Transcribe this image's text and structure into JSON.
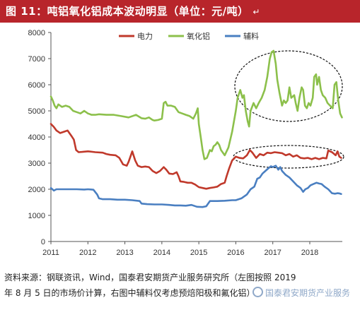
{
  "header": {
    "title": "图 11：吨铝氧化铝成本波动明显（单位：元/吨）",
    "mark": "↵"
  },
  "footnote": {
    "line1": "资料来源：钢联资讯，Wind，国泰君安期货产业服务研究所（左图按照 2019",
    "line2": "年 8 月 5 日的市场价计算，右图中辅料仅考虑预焙阳极和氟化铝）",
    "watermark": "国泰君安期货产业服务"
  },
  "chart_data": {
    "type": "line",
    "title": "",
    "xlabel": "",
    "ylabel": "",
    "xlim": [
      2011.0,
      2018.88
    ],
    "ylim": [
      0,
      8000
    ],
    "yticks": [
      "0",
      "1000",
      "2000",
      "3000",
      "4000",
      "5000",
      "6000",
      "7000",
      "8000"
    ],
    "xticks": [
      "2011",
      "2012",
      "2013",
      "2014",
      "2015",
      "2016",
      "2017",
      "2018"
    ],
    "grid": false,
    "legend": "top-center",
    "series": [
      {
        "name": "电力",
        "color": "#c0392b",
        "points": [
          [
            2011.0,
            4500
          ],
          [
            2011.08,
            4380
          ],
          [
            2011.15,
            4250
          ],
          [
            2011.25,
            4150
          ],
          [
            2011.35,
            4200
          ],
          [
            2011.45,
            4250
          ],
          [
            2011.55,
            4050
          ],
          [
            2011.62,
            3900
          ],
          [
            2011.68,
            3500
          ],
          [
            2011.75,
            3420
          ],
          [
            2011.85,
            3430
          ],
          [
            2012.0,
            3450
          ],
          [
            2012.2,
            3420
          ],
          [
            2012.4,
            3400
          ],
          [
            2012.5,
            3350
          ],
          [
            2012.6,
            3320
          ],
          [
            2012.75,
            3300
          ],
          [
            2012.85,
            3200
          ],
          [
            2012.95,
            2950
          ],
          [
            2013.05,
            2900
          ],
          [
            2013.1,
            3050
          ],
          [
            2013.15,
            3250
          ],
          [
            2013.2,
            3450
          ],
          [
            2013.28,
            3100
          ],
          [
            2013.35,
            2900
          ],
          [
            2013.45,
            2850
          ],
          [
            2013.55,
            2870
          ],
          [
            2013.65,
            2850
          ],
          [
            2013.75,
            2700
          ],
          [
            2013.85,
            2620
          ],
          [
            2013.95,
            2700
          ],
          [
            2014.05,
            2850
          ],
          [
            2014.12,
            2750
          ],
          [
            2014.2,
            2600
          ],
          [
            2014.3,
            2580
          ],
          [
            2014.4,
            2650
          ],
          [
            2014.45,
            2500
          ],
          [
            2014.5,
            2300
          ],
          [
            2014.6,
            2280
          ],
          [
            2014.7,
            2250
          ],
          [
            2014.8,
            2250
          ],
          [
            2014.9,
            2180
          ],
          [
            2015.0,
            2080
          ],
          [
            2015.1,
            2050
          ],
          [
            2015.2,
            2020
          ],
          [
            2015.3,
            2050
          ],
          [
            2015.4,
            2070
          ],
          [
            2015.5,
            2100
          ],
          [
            2015.6,
            2200
          ],
          [
            2015.7,
            2250
          ],
          [
            2015.75,
            2500
          ],
          [
            2015.82,
            2800
          ],
          [
            2015.9,
            3100
          ],
          [
            2016.0,
            3250
          ],
          [
            2016.1,
            3200
          ],
          [
            2016.2,
            3180
          ],
          [
            2016.3,
            3300
          ],
          [
            2016.38,
            3500
          ],
          [
            2016.45,
            3400
          ],
          [
            2016.55,
            3200
          ],
          [
            2016.65,
            3350
          ],
          [
            2016.75,
            3300
          ],
          [
            2016.85,
            3400
          ],
          [
            2016.95,
            3380
          ],
          [
            2017.05,
            3420
          ],
          [
            2017.15,
            3400
          ],
          [
            2017.25,
            3380
          ],
          [
            2017.35,
            3300
          ],
          [
            2017.45,
            3350
          ],
          [
            2017.55,
            3250
          ],
          [
            2017.65,
            3300
          ],
          [
            2017.75,
            3200
          ],
          [
            2017.85,
            3180
          ],
          [
            2017.95,
            3200
          ],
          [
            2018.05,
            3150
          ],
          [
            2018.15,
            3200
          ],
          [
            2018.25,
            3150
          ],
          [
            2018.35,
            3200
          ],
          [
            2018.45,
            3180
          ],
          [
            2018.5,
            3480
          ],
          [
            2018.6,
            3420
          ],
          [
            2018.7,
            3300
          ],
          [
            2018.75,
            3450
          ],
          [
            2018.8,
            3250
          ],
          [
            2018.85,
            3200
          ]
        ]
      },
      {
        "name": "氧化铝",
        "color": "#8cc04b",
        "points": [
          [
            2011.0,
            5550
          ],
          [
            2011.05,
            5400
          ],
          [
            2011.1,
            5200
          ],
          [
            2011.15,
            5100
          ],
          [
            2011.2,
            5250
          ],
          [
            2011.3,
            5150
          ],
          [
            2011.4,
            5200
          ],
          [
            2011.5,
            5150
          ],
          [
            2011.6,
            5000
          ],
          [
            2011.7,
            4950
          ],
          [
            2011.8,
            4900
          ],
          [
            2011.9,
            5000
          ],
          [
            2012.0,
            4900
          ],
          [
            2012.1,
            4850
          ],
          [
            2012.2,
            4850
          ],
          [
            2012.3,
            4870
          ],
          [
            2012.5,
            4850
          ],
          [
            2012.7,
            4850
          ],
          [
            2012.9,
            4800
          ],
          [
            2013.1,
            4750
          ],
          [
            2013.3,
            4850
          ],
          [
            2013.45,
            4720
          ],
          [
            2013.55,
            4700
          ],
          [
            2013.65,
            4750
          ],
          [
            2013.75,
            4650
          ],
          [
            2013.8,
            4630
          ],
          [
            2013.9,
            4650
          ],
          [
            2014.0,
            4700
          ],
          [
            2014.05,
            5300
          ],
          [
            2014.1,
            5350
          ],
          [
            2014.15,
            5200
          ],
          [
            2014.25,
            5200
          ],
          [
            2014.35,
            5150
          ],
          [
            2014.45,
            4950
          ],
          [
            2014.55,
            4900
          ],
          [
            2014.65,
            4850
          ],
          [
            2014.75,
            4800
          ],
          [
            2014.85,
            4700
          ],
          [
            2014.92,
            4900
          ],
          [
            2014.97,
            5100
          ],
          [
            2015.0,
            4500
          ],
          [
            2015.05,
            4000
          ],
          [
            2015.1,
            3500
          ],
          [
            2015.15,
            3150
          ],
          [
            2015.22,
            3200
          ],
          [
            2015.3,
            3500
          ],
          [
            2015.35,
            3450
          ],
          [
            2015.4,
            3650
          ],
          [
            2015.45,
            3700
          ],
          [
            2015.5,
            3800
          ],
          [
            2015.55,
            3700
          ],
          [
            2015.6,
            3500
          ],
          [
            2015.7,
            3300
          ],
          [
            2015.8,
            3600
          ],
          [
            2015.9,
            4200
          ],
          [
            2016.0,
            5000
          ],
          [
            2016.05,
            5500
          ],
          [
            2016.12,
            5800
          ],
          [
            2016.18,
            5500
          ],
          [
            2016.22,
            5600
          ],
          [
            2016.27,
            5000
          ],
          [
            2016.32,
            4600
          ],
          [
            2016.36,
            4400
          ],
          [
            2016.4,
            5000
          ],
          [
            2016.48,
            5300
          ],
          [
            2016.55,
            5100
          ],
          [
            2016.62,
            5300
          ],
          [
            2016.7,
            5500
          ],
          [
            2016.78,
            5800
          ],
          [
            2016.85,
            6300
          ],
          [
            2016.92,
            7000
          ],
          [
            2016.97,
            7250
          ],
          [
            2017.02,
            7300
          ],
          [
            2017.08,
            6800
          ],
          [
            2017.12,
            6200
          ],
          [
            2017.18,
            5700
          ],
          [
            2017.25,
            5200
          ],
          [
            2017.3,
            5400
          ],
          [
            2017.35,
            5300
          ],
          [
            2017.4,
            5400
          ],
          [
            2017.45,
            5900
          ],
          [
            2017.5,
            5500
          ],
          [
            2017.58,
            5600
          ],
          [
            2017.62,
            5300
          ],
          [
            2017.67,
            5000
          ],
          [
            2017.72,
            5500
          ],
          [
            2017.78,
            5900
          ],
          [
            2017.82,
            5800
          ],
          [
            2017.87,
            5200
          ],
          [
            2017.92,
            5100
          ],
          [
            2017.97,
            5300
          ],
          [
            2018.02,
            5200
          ],
          [
            2018.08,
            5500
          ],
          [
            2018.12,
            6300
          ],
          [
            2018.17,
            6400
          ],
          [
            2018.2,
            6000
          ],
          [
            2018.25,
            6300
          ],
          [
            2018.3,
            5800
          ],
          [
            2018.35,
            5600
          ],
          [
            2018.42,
            5500
          ],
          [
            2018.48,
            5300
          ],
          [
            2018.55,
            5200
          ],
          [
            2018.62,
            5100
          ],
          [
            2018.67,
            6000
          ],
          [
            2018.72,
            6100
          ],
          [
            2018.77,
            5400
          ],
          [
            2018.82,
            4900
          ],
          [
            2018.87,
            4750
          ]
        ]
      },
      {
        "name": "辅料",
        "color": "#4a7fc1",
        "points": [
          [
            2011.0,
            2050
          ],
          [
            2011.08,
            1950
          ],
          [
            2011.15,
            2000
          ],
          [
            2011.3,
            2000
          ],
          [
            2011.5,
            2000
          ],
          [
            2011.7,
            2000
          ],
          [
            2011.9,
            1990
          ],
          [
            2012.0,
            2000
          ],
          [
            2012.15,
            1980
          ],
          [
            2012.25,
            1800
          ],
          [
            2012.3,
            1650
          ],
          [
            2012.4,
            1620
          ],
          [
            2012.6,
            1620
          ],
          [
            2012.8,
            1600
          ],
          [
            2013.0,
            1600
          ],
          [
            2013.2,
            1580
          ],
          [
            2013.4,
            1550
          ],
          [
            2013.45,
            1450
          ],
          [
            2013.6,
            1430
          ],
          [
            2013.8,
            1420
          ],
          [
            2014.0,
            1420
          ],
          [
            2014.2,
            1400
          ],
          [
            2014.35,
            1380
          ],
          [
            2014.5,
            1380
          ],
          [
            2014.65,
            1370
          ],
          [
            2014.8,
            1400
          ],
          [
            2014.95,
            1330
          ],
          [
            2015.1,
            1320
          ],
          [
            2015.2,
            1350
          ],
          [
            2015.3,
            1550
          ],
          [
            2015.5,
            1550
          ],
          [
            2015.7,
            1560
          ],
          [
            2015.9,
            1580
          ],
          [
            2016.0,
            1580
          ],
          [
            2016.15,
            1650
          ],
          [
            2016.3,
            1800
          ],
          [
            2016.4,
            2000
          ],
          [
            2016.5,
            2100
          ],
          [
            2016.58,
            2400
          ],
          [
            2016.65,
            2450
          ],
          [
            2016.72,
            2600
          ],
          [
            2016.8,
            2700
          ],
          [
            2016.88,
            2800
          ],
          [
            2016.95,
            2880
          ],
          [
            2017.0,
            2850
          ],
          [
            2017.08,
            2900
          ],
          [
            2017.15,
            2750
          ],
          [
            2017.2,
            2850
          ],
          [
            2017.25,
            2700
          ],
          [
            2017.35,
            2550
          ],
          [
            2017.45,
            2450
          ],
          [
            2017.55,
            2300
          ],
          [
            2017.65,
            2150
          ],
          [
            2017.75,
            2050
          ],
          [
            2017.82,
            1900
          ],
          [
            2017.88,
            2000
          ],
          [
            2017.95,
            2050
          ],
          [
            2018.02,
            2150
          ],
          [
            2018.1,
            2200
          ],
          [
            2018.18,
            2250
          ],
          [
            2018.25,
            2220
          ],
          [
            2018.32,
            2200
          ],
          [
            2018.4,
            2100
          ],
          [
            2018.5,
            2000
          ],
          [
            2018.6,
            1850
          ],
          [
            2018.68,
            1830
          ],
          [
            2018.75,
            1850
          ],
          [
            2018.8,
            1840
          ],
          [
            2018.85,
            1820
          ]
        ]
      }
    ]
  }
}
